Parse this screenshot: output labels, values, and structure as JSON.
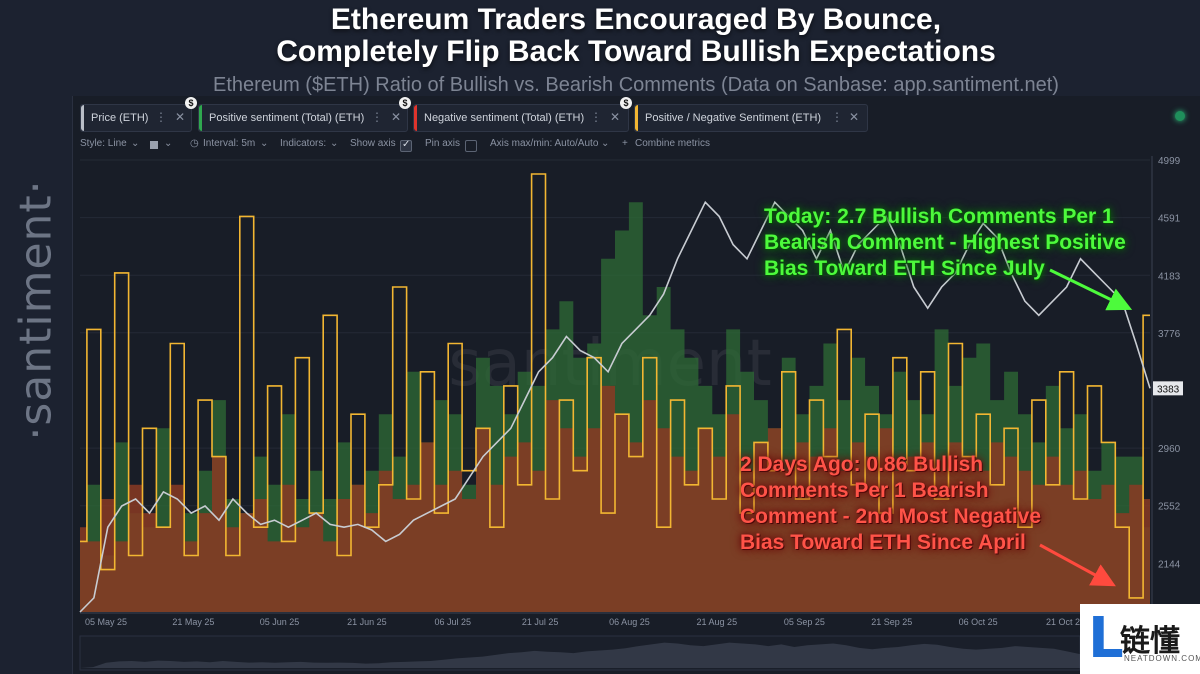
{
  "header": {
    "title_line1": "Ethereum Traders Encouraged By Bounce,",
    "title_line2": "Completely Flip Back Toward Bullish Expectations",
    "subtitle": "Ethereum ($ETH) Ratio of Bullish vs. Bearish Comments (Data on Sanbase: app.santiment.net)"
  },
  "brand": {
    "side_text": "·santiment·",
    "watermark": "santiment"
  },
  "metric_chips": [
    {
      "label": "Price (ETH)",
      "color": "#b9bec7"
    },
    {
      "label": "Positive sentiment (Total) (ETH)",
      "color": "#2fa84f"
    },
    {
      "label": "Negative sentiment (Total) (ETH)",
      "color": "#e0342c"
    },
    {
      "label": "Positive / Negative Sentiment (ETH)",
      "color": "#f2b632"
    }
  ],
  "chip_icons": {
    "more": "⋮",
    "close": "✕",
    "badge": "$"
  },
  "toolbar": {
    "style": "Style: Line",
    "interval": "Interval: 5m",
    "indicators": "Indicators:",
    "show_axis": "Show axis",
    "pin_axis": "Pin axis",
    "axis_minmax": "Axis max/min: Auto/Auto",
    "combine": "Combine metrics",
    "show_axis_checked": true,
    "pin_axis_checked": false
  },
  "chart_data": {
    "type": "line",
    "x_ticks": [
      "05 May 25",
      "21 May 25",
      "05 Jun 25",
      "21 Jun 25",
      "06 Jul 25",
      "21 Jul 25",
      "06 Aug 25",
      "21 Aug 25",
      "05 Sep 25",
      "21 Sep 25",
      "06 Oct 25",
      "21 Oct 25"
    ],
    "y_ticks": [
      "4999",
      "4591",
      "4183",
      "3776",
      "2960",
      "2552",
      "2144"
    ],
    "ylim": [
      1800,
      4999
    ],
    "current_price_label": "3383",
    "series": [
      {
        "name": "Price (ETH)",
        "color": "#c8ccd2",
        "values": [
          1800,
          1900,
          2400,
          2550,
          2600,
          2500,
          2650,
          2600,
          2500,
          2550,
          2450,
          2600,
          2500,
          2420,
          2450,
          2400,
          2450,
          2500,
          2420,
          2400,
          2420,
          2380,
          2300,
          2350,
          2450,
          2500,
          2550,
          2600,
          2750,
          2900,
          3000,
          3100,
          3300,
          3500,
          3600,
          3750,
          3650,
          3600,
          3500,
          3700,
          3800,
          3900,
          4050,
          4300,
          4500,
          4700,
          4600,
          4400,
          4300,
          4500,
          4700,
          4600,
          4500,
          4300,
          4500,
          4200,
          4400,
          4500,
          4600,
          4400,
          4100,
          3950,
          4100,
          4200,
          4400,
          4550,
          4450,
          4200,
          4000,
          3900,
          4000,
          4100,
          4300,
          4200,
          4100,
          4000,
          3700,
          3383
        ]
      },
      {
        "name": "Positive sentiment (Total) (ETH)",
        "color": "#2e6b35",
        "values": [
          2300,
          2700,
          2200,
          3000,
          2500,
          2400,
          3100,
          2600,
          2500,
          2800,
          3300,
          2600,
          2500,
          2900,
          2700,
          3200,
          2600,
          2800,
          2600,
          3000,
          2700,
          2800,
          3200,
          2900,
          3500,
          3000,
          3300,
          3200,
          2700,
          3600,
          3400,
          3200,
          3500,
          3400,
          3800,
          4000,
          3600,
          3700,
          4300,
          4500,
          4700,
          3900,
          4100,
          3800,
          3600,
          3400,
          3200,
          3800,
          3500,
          3300,
          3100,
          3600,
          3200,
          3400,
          3700,
          3300,
          3600,
          3400,
          3200,
          3500,
          3300,
          3200,
          3800,
          3400,
          3600,
          3700,
          3300,
          3500,
          3200,
          3000,
          3400,
          3100,
          3200,
          2800,
          3000,
          2900,
          2900,
          2400
        ]
      },
      {
        "name": "Negative sentiment (Total) (ETH)",
        "color": "#8a3a23",
        "values": [
          2400,
          2300,
          2600,
          2300,
          2700,
          2500,
          2400,
          2700,
          2300,
          2500,
          2900,
          2400,
          2500,
          2600,
          2300,
          2700,
          2400,
          2500,
          2300,
          2600,
          2700,
          2500,
          2800,
          2600,
          2700,
          3000,
          2700,
          2800,
          2600,
          3100,
          2700,
          2900,
          3000,
          2800,
          3300,
          3100,
          2900,
          3100,
          3400,
          3200,
          3000,
          3300,
          3100,
          2900,
          2800,
          3100,
          2900,
          3200,
          2800,
          3000,
          3100,
          2800,
          3000,
          2900,
          3100,
          2800,
          3000,
          2900,
          3100,
          2800,
          2900,
          3000,
          2800,
          3000,
          2900,
          2800,
          3000,
          2900,
          2800,
          2700,
          2900,
          2700,
          2800,
          2600,
          2700,
          2500,
          2700,
          2600
        ]
      },
      {
        "name": "Positive / Negative Sentiment (ETH)",
        "color": "#f2b632",
        "values": [
          2300,
          3800,
          2100,
          4200,
          2200,
          3100,
          2400,
          3700,
          2200,
          3300,
          2900,
          2200,
          4600,
          2400,
          3400,
          2300,
          3600,
          2500,
          3900,
          2200,
          3200,
          2400,
          2700,
          4100,
          2600,
          3500,
          2500,
          3700,
          2800,
          3100,
          2400,
          3400,
          2700,
          4900,
          2600,
          3300,
          2800,
          3600,
          2500,
          3200,
          2900,
          3600,
          2400,
          3300,
          2700,
          3100,
          2600,
          3400,
          2500,
          3000,
          2800,
          3500,
          2600,
          3300,
          2900,
          3800,
          2700,
          3200,
          2500,
          3600,
          2800,
          3500,
          2600,
          3700,
          2900,
          3200,
          2700,
          3100,
          2400,
          3300,
          2700,
          3500,
          2600,
          3400,
          3000,
          2400,
          1900,
          3900
        ]
      }
    ],
    "annotations": [
      {
        "text": "Today: 2.7 Bullish Comments Per 1\nBearish Comment - Highest Positive\nBias Toward ETH Since July",
        "color": "#4dfa3c"
      },
      {
        "text": "2 Days Ago: 0.86 Bullish\nComments Per 1 Bearish\nComment - 2nd Most Negative\nBias Toward ETH Since April",
        "color": "#ff5348"
      }
    ],
    "grid": true,
    "legend": "top"
  },
  "logo": {
    "mark": "L",
    "name_cn": "链懂",
    "name_en": "NEATDOWN.COM"
  }
}
